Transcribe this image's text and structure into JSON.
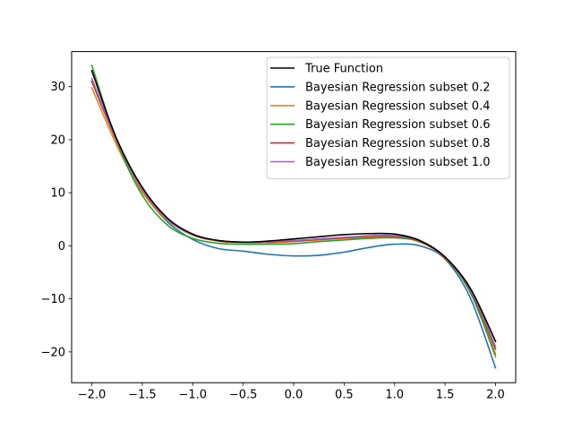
{
  "chart_data": {
    "type": "line",
    "title": "",
    "xlabel": "",
    "ylabel": "",
    "xlim": [
      -2.2,
      2.2
    ],
    "ylim": [
      -25.8,
      36.6
    ],
    "grid": false,
    "legend_position": "upper-right",
    "x_ticks": [
      -2.0,
      -1.5,
      -1.0,
      -0.5,
      0.0,
      0.5,
      1.0,
      1.5,
      2.0
    ],
    "x_tick_labels": [
      "−2.0",
      "−1.5",
      "−1.0",
      "−0.5",
      "0.0",
      "0.5",
      "1.0",
      "1.5",
      "2.0"
    ],
    "y_ticks": [
      -20,
      -10,
      0,
      10,
      20,
      30
    ],
    "y_tick_labels": [
      "−20",
      "−10",
      "0",
      "10",
      "20",
      "30"
    ],
    "x": [
      -2.0,
      -1.75,
      -1.5,
      -1.25,
      -1.0,
      -0.75,
      -0.5,
      -0.25,
      0.0,
      0.25,
      0.5,
      0.75,
      1.0,
      1.25,
      1.5,
      1.75,
      2.0
    ],
    "series": [
      {
        "name": "True Function",
        "color": "#000000",
        "values": [
          33.0,
          20.0,
          11.0,
          5.2,
          2.2,
          1.0,
          0.7,
          0.9,
          1.3,
          1.7,
          2.1,
          2.3,
          2.2,
          1.0,
          -2.1,
          -8.0,
          -18.0
        ]
      },
      {
        "name": "Bayesian Regression subset 0.2",
        "color": "#1f77b4",
        "values": [
          31.0,
          19.5,
          10.3,
          4.5,
          1.2,
          -0.5,
          -1.0,
          -1.6,
          -1.9,
          -1.8,
          -1.2,
          -0.3,
          0.3,
          0.0,
          -2.5,
          -9.8,
          -23.0
        ]
      },
      {
        "name": "Bayesian Regression subset 0.4",
        "color": "#ff7f0e",
        "values": [
          29.8,
          18.8,
          10.1,
          4.8,
          2.0,
          0.9,
          0.6,
          0.6,
          0.8,
          1.1,
          1.4,
          1.6,
          1.6,
          0.7,
          -2.3,
          -8.7,
          -21.0
        ]
      },
      {
        "name": "Bayesian Regression subset 0.6",
        "color": "#2ca02c",
        "values": [
          34.0,
          19.5,
          9.5,
          3.9,
          1.4,
          0.5,
          0.3,
          0.3,
          0.4,
          0.8,
          1.1,
          1.4,
          1.5,
          0.8,
          -2.2,
          -8.8,
          -20.5
        ]
      },
      {
        "name": "Bayesian Regression subset 0.8",
        "color": "#d62728",
        "values": [
          31.0,
          19.7,
          10.5,
          5.0,
          2.1,
          1.0,
          0.7,
          0.7,
          0.9,
          1.2,
          1.5,
          1.8,
          1.8,
          0.9,
          -2.2,
          -8.4,
          -19.5
        ]
      },
      {
        "name": "Bayesian Regression subset 1.0",
        "color": "#9467bd",
        "values": [
          31.5,
          19.8,
          10.6,
          5.0,
          2.1,
          1.0,
          0.7,
          0.8,
          1.0,
          1.3,
          1.6,
          1.9,
          1.9,
          1.0,
          -2.1,
          -8.2,
          -19.0
        ]
      }
    ]
  }
}
